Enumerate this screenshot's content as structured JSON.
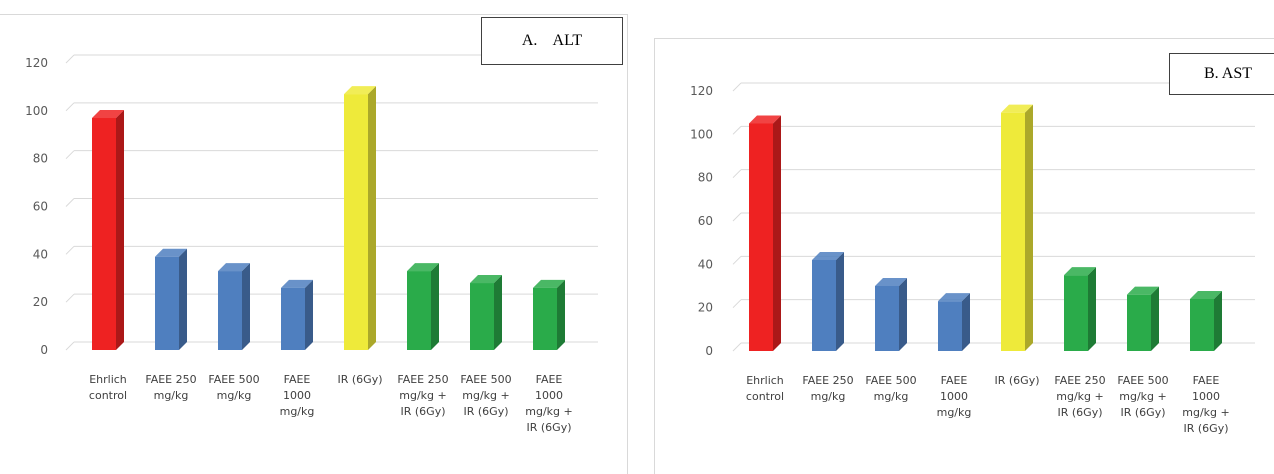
{
  "chart_data": [
    {
      "type": "bar",
      "title": "A.    ALT",
      "categories": [
        [
          "Ehrlich",
          "control"
        ],
        [
          "FAEE 250",
          "mg/kg"
        ],
        [
          "FAEE 500",
          "mg/kg"
        ],
        [
          "FAEE",
          "1000",
          "mg/kg"
        ],
        [
          "IR (6Gy)"
        ],
        [
          "FAEE 250",
          "mg/kg +",
          "IR (6Gy)"
        ],
        [
          "FAEE  500",
          "mg/kg +",
          "IR (6Gy)"
        ],
        [
          "FAEE",
          "1000",
          "mg/kg +",
          "IR (6Gy)"
        ]
      ],
      "values": [
        97,
        39,
        33,
        26,
        107,
        33,
        28,
        26
      ],
      "colors": [
        "#ee2222",
        "#4f7fbf",
        "#4f7fbf",
        "#4f7fbf",
        "#eeea3a",
        "#2aab4a",
        "#2aab4a",
        "#2aab4a"
      ],
      "ylim": [
        0,
        120
      ],
      "yticks": [
        0,
        20,
        40,
        60,
        80,
        100,
        120
      ],
      "grid": true,
      "xlabel": "",
      "ylabel": ""
    },
    {
      "type": "bar",
      "title": "B. AST",
      "categories": [
        [
          "Ehrlich",
          "control"
        ],
        [
          "FAEE 250",
          "mg/kg"
        ],
        [
          "FAEE 500",
          "mg/kg"
        ],
        [
          "FAEE",
          "1000",
          "mg/kg"
        ],
        [
          "IR (6Gy)"
        ],
        [
          "FAEE 250",
          "mg/kg +",
          "IR (6Gy)"
        ],
        [
          "FAEE  500",
          "mg/kg +",
          "IR (6Gy)"
        ],
        [
          "FAEE",
          "1000",
          "mg/kg +",
          "IR (6Gy)"
        ]
      ],
      "values": [
        105,
        42,
        30,
        23,
        110,
        35,
        26,
        24
      ],
      "colors": [
        "#ee2222",
        "#4f7fbf",
        "#4f7fbf",
        "#4f7fbf",
        "#eeea3a",
        "#2aab4a",
        "#2aab4a",
        "#2aab4a"
      ],
      "ylim": [
        0,
        120
      ],
      "yticks": [
        0,
        20,
        40,
        60,
        80,
        100,
        120
      ],
      "grid": true,
      "xlabel": "",
      "ylabel": ""
    }
  ]
}
